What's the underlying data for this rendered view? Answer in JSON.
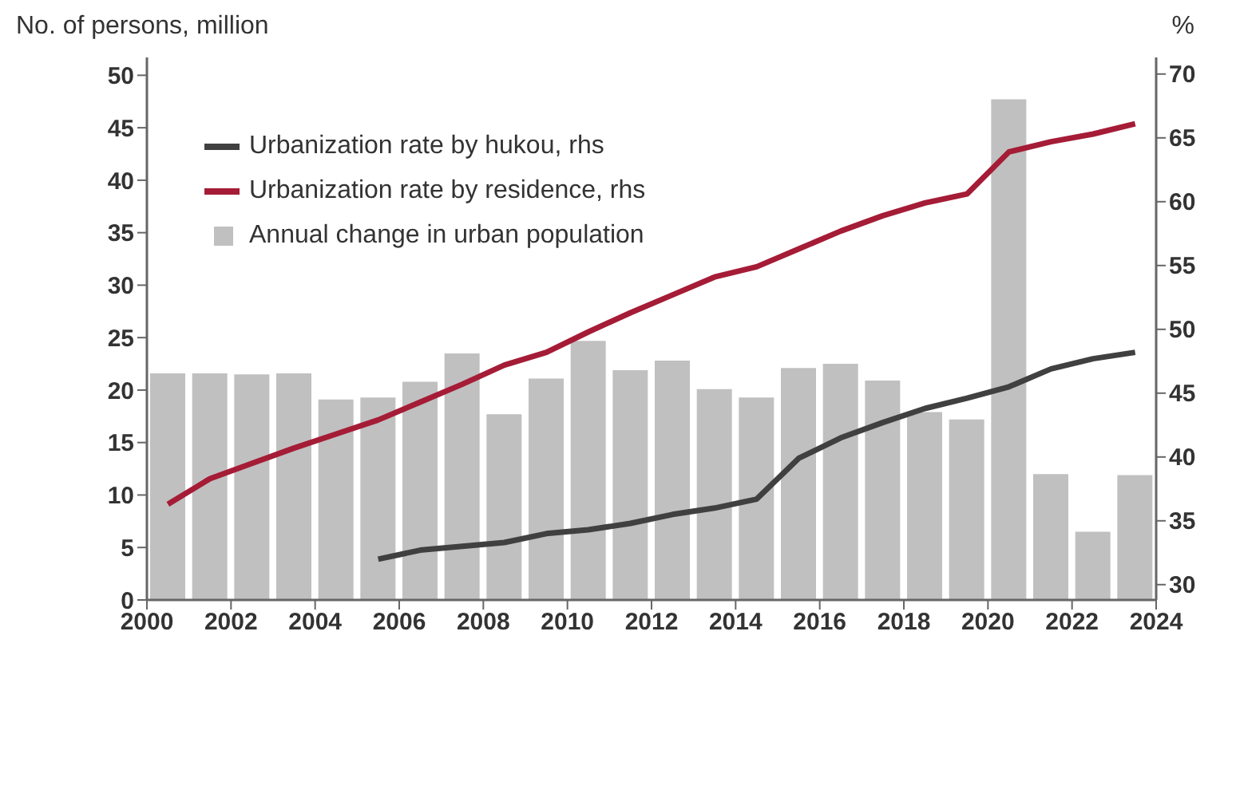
{
  "chart_data": {
    "type": "bar",
    "ylabel": "No. of persons, million",
    "y2label": "%",
    "x": [
      2000.5,
      2001.5,
      2002.5,
      2003.5,
      2004.5,
      2005.5,
      2006.5,
      2007.5,
      2008.5,
      2009.5,
      2010.5,
      2011.5,
      2012.5,
      2013.5,
      2014.5,
      2015.5,
      2016.5,
      2017.5,
      2018.5,
      2019.5,
      2020.5,
      2021.5,
      2022.5,
      2023.5
    ],
    "series": [
      {
        "name": "Urbanization rate by hukou, rhs",
        "type": "line",
        "axis": "y2",
        "color": "#404040",
        "values": [
          null,
          null,
          null,
          null,
          null,
          32.0,
          32.7,
          33.0,
          33.3,
          34.0,
          34.3,
          34.8,
          35.5,
          36.0,
          36.7,
          39.9,
          41.5,
          42.7,
          43.8,
          44.6,
          45.5,
          46.9,
          47.7,
          48.2
        ]
      },
      {
        "name": "Urbanization rate by residence, rhs",
        "type": "line",
        "axis": "y2",
        "color": "#a51c36",
        "values": [
          36.3,
          38.3,
          39.5,
          40.7,
          41.8,
          42.9,
          44.3,
          45.7,
          47.2,
          48.2,
          49.8,
          51.3,
          52.7,
          54.1,
          54.9,
          56.3,
          57.7,
          58.9,
          59.9,
          60.6,
          63.9,
          64.7,
          65.3,
          66.1
        ]
      },
      {
        "name": "Annual change in urban population",
        "color": "#c0c0c0",
        "values": [
          21.6,
          21.6,
          21.5,
          21.6,
          19.1,
          19.3,
          20.8,
          23.5,
          17.7,
          21.1,
          24.7,
          21.9,
          22.8,
          20.1,
          19.3,
          22.1,
          22.5,
          20.9,
          17.9,
          17.2,
          47.7,
          12.0,
          6.5,
          11.9
        ]
      }
    ],
    "xlim": [
      2000,
      2024
    ],
    "xticks": [
      2000,
      2002,
      2004,
      2006,
      2008,
      2010,
      2012,
      2014,
      2016,
      2018,
      2020,
      2022,
      2024
    ],
    "ylim": [
      0,
      51.7
    ],
    "yticks": [
      0,
      5,
      10,
      15,
      20,
      25,
      30,
      35,
      40,
      45,
      50
    ],
    "y2lim": [
      28.8,
      71.3
    ],
    "y2ticks": [
      30,
      35,
      40,
      45,
      50,
      55,
      60,
      65,
      70
    ],
    "legend": "top left",
    "line_style": "solid",
    "marker": "none"
  }
}
